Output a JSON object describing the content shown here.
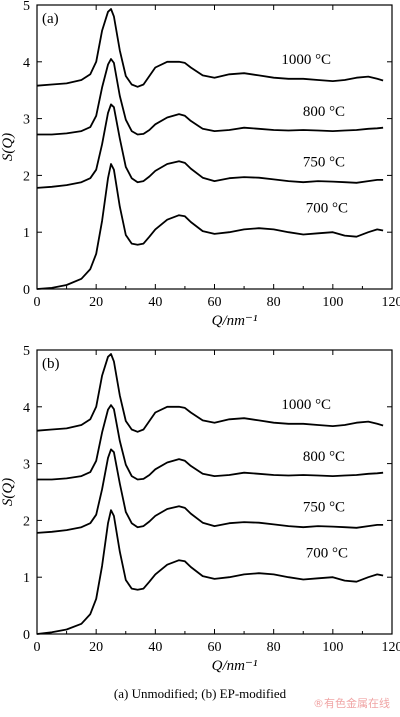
{
  "chart_data": [
    {
      "type": "line",
      "panel_label": "(a)",
      "xlabel": "Q/nm⁻¹",
      "ylabel": "S(Q)",
      "xlim": [
        0,
        120
      ],
      "ylim": [
        0,
        5
      ],
      "xticks": [
        0,
        20,
        40,
        60,
        80,
        100,
        120
      ],
      "yticks": [
        0,
        1,
        2,
        3,
        4,
        5
      ],
      "grid": false,
      "series": [
        {
          "name": "700 °C",
          "x": [
            0,
            5,
            10,
            15,
            18,
            20,
            22,
            24,
            25,
            26,
            28,
            30,
            32,
            34,
            36,
            38,
            40,
            44,
            48,
            50,
            52,
            56,
            60,
            65,
            70,
            75,
            80,
            85,
            90,
            95,
            100,
            104,
            108,
            112,
            115,
            117
          ],
          "y": [
            0,
            0.02,
            0.07,
            0.18,
            0.35,
            0.62,
            1.2,
            1.95,
            2.2,
            2.1,
            1.45,
            0.95,
            0.8,
            0.78,
            0.8,
            0.92,
            1.05,
            1.22,
            1.3,
            1.28,
            1.18,
            1.02,
            0.97,
            1.0,
            1.05,
            1.07,
            1.05,
            1.0,
            0.96,
            0.98,
            1.0,
            0.94,
            0.92,
            1.0,
            1.05,
            1.03
          ]
        },
        {
          "name": "750 °C",
          "x": [
            0,
            5,
            10,
            15,
            18,
            20,
            22,
            24,
            25,
            26,
            28,
            30,
            32,
            34,
            36,
            38,
            40,
            44,
            48,
            50,
            52,
            56,
            60,
            65,
            70,
            75,
            80,
            85,
            90,
            95,
            100,
            104,
            108,
            112,
            115,
            117
          ],
          "y": [
            1.78,
            1.8,
            1.83,
            1.88,
            1.95,
            2.1,
            2.55,
            3.1,
            3.25,
            3.2,
            2.65,
            2.15,
            1.95,
            1.88,
            1.9,
            1.98,
            2.08,
            2.2,
            2.25,
            2.22,
            2.12,
            1.96,
            1.9,
            1.95,
            1.97,
            1.96,
            1.93,
            1.9,
            1.88,
            1.9,
            1.89,
            1.88,
            1.87,
            1.9,
            1.92,
            1.92
          ]
        },
        {
          "name": "800 °C",
          "x": [
            0,
            5,
            10,
            15,
            18,
            20,
            22,
            24,
            25,
            26,
            28,
            30,
            32,
            34,
            36,
            38,
            40,
            44,
            48,
            50,
            52,
            56,
            60,
            65,
            70,
            75,
            80,
            85,
            90,
            95,
            100,
            104,
            108,
            112,
            115,
            117
          ],
          "y": [
            2.72,
            2.72,
            2.74,
            2.78,
            2.85,
            3.05,
            3.55,
            3.95,
            4.05,
            3.98,
            3.4,
            2.98,
            2.78,
            2.72,
            2.73,
            2.8,
            2.9,
            3.02,
            3.08,
            3.05,
            2.96,
            2.82,
            2.78,
            2.8,
            2.84,
            2.82,
            2.8,
            2.79,
            2.8,
            2.79,
            2.78,
            2.79,
            2.8,
            2.82,
            2.83,
            2.84
          ]
        },
        {
          "name": "1000 °C",
          "x": [
            0,
            5,
            10,
            15,
            18,
            20,
            22,
            24,
            25,
            26,
            28,
            30,
            32,
            34,
            36,
            38,
            40,
            44,
            48,
            50,
            52,
            56,
            60,
            65,
            70,
            75,
            80,
            85,
            90,
            95,
            100,
            104,
            108,
            112,
            115,
            117
          ],
          "y": [
            3.58,
            3.6,
            3.62,
            3.68,
            3.78,
            4.0,
            4.55,
            4.88,
            4.93,
            4.8,
            4.2,
            3.75,
            3.6,
            3.56,
            3.6,
            3.75,
            3.9,
            4.0,
            4.0,
            3.98,
            3.9,
            3.76,
            3.72,
            3.78,
            3.8,
            3.76,
            3.72,
            3.7,
            3.7,
            3.68,
            3.66,
            3.68,
            3.72,
            3.74,
            3.7,
            3.67
          ]
        }
      ]
    },
    {
      "type": "line",
      "panel_label": "(b)",
      "xlabel": "Q/nm⁻¹",
      "ylabel": "S(Q)",
      "xlim": [
        0,
        120
      ],
      "ylim": [
        0,
        5
      ],
      "xticks": [
        0,
        20,
        40,
        60,
        80,
        100,
        120
      ],
      "yticks": [
        0,
        1,
        2,
        3,
        4,
        5
      ],
      "grid": false,
      "series": [
        {
          "name": "700 °C",
          "x": [
            0,
            5,
            10,
            15,
            18,
            20,
            22,
            24,
            25,
            26,
            28,
            30,
            32,
            34,
            36,
            38,
            40,
            44,
            48,
            50,
            52,
            56,
            60,
            65,
            70,
            75,
            80,
            85,
            90,
            95,
            100,
            104,
            108,
            112,
            115,
            117
          ],
          "y": [
            0,
            0.03,
            0.08,
            0.18,
            0.35,
            0.62,
            1.2,
            1.95,
            2.18,
            2.08,
            1.45,
            0.95,
            0.8,
            0.78,
            0.8,
            0.92,
            1.05,
            1.22,
            1.3,
            1.28,
            1.18,
            1.02,
            0.97,
            1.0,
            1.05,
            1.07,
            1.05,
            1.0,
            0.96,
            0.98,
            1.0,
            0.94,
            0.92,
            1.0,
            1.05,
            1.03
          ]
        },
        {
          "name": "750 °C",
          "x": [
            0,
            5,
            10,
            15,
            18,
            20,
            22,
            24,
            25,
            26,
            28,
            30,
            32,
            34,
            36,
            38,
            40,
            44,
            48,
            50,
            52,
            56,
            60,
            65,
            70,
            75,
            80,
            85,
            90,
            95,
            100,
            104,
            108,
            112,
            115,
            117
          ],
          "y": [
            1.78,
            1.8,
            1.83,
            1.88,
            1.95,
            2.1,
            2.55,
            3.1,
            3.25,
            3.2,
            2.65,
            2.15,
            1.95,
            1.88,
            1.9,
            1.98,
            2.08,
            2.2,
            2.25,
            2.22,
            2.12,
            1.96,
            1.9,
            1.95,
            1.97,
            1.96,
            1.93,
            1.9,
            1.88,
            1.9,
            1.89,
            1.88,
            1.87,
            1.9,
            1.92,
            1.92
          ]
        },
        {
          "name": "800 °C",
          "x": [
            0,
            5,
            10,
            15,
            18,
            20,
            22,
            24,
            25,
            26,
            28,
            30,
            32,
            34,
            36,
            38,
            40,
            44,
            48,
            50,
            52,
            56,
            60,
            65,
            70,
            75,
            80,
            85,
            90,
            95,
            100,
            104,
            108,
            112,
            115,
            117
          ],
          "y": [
            2.72,
            2.72,
            2.74,
            2.78,
            2.85,
            3.05,
            3.55,
            3.95,
            4.03,
            3.96,
            3.4,
            2.98,
            2.78,
            2.72,
            2.73,
            2.8,
            2.9,
            3.02,
            3.08,
            3.05,
            2.96,
            2.82,
            2.78,
            2.8,
            2.84,
            2.82,
            2.8,
            2.79,
            2.8,
            2.79,
            2.78,
            2.79,
            2.8,
            2.82,
            2.83,
            2.84
          ]
        },
        {
          "name": "1000 °C",
          "x": [
            0,
            5,
            10,
            15,
            18,
            20,
            22,
            24,
            25,
            26,
            28,
            30,
            32,
            34,
            36,
            38,
            40,
            44,
            48,
            50,
            52,
            56,
            60,
            65,
            70,
            75,
            80,
            85,
            90,
            95,
            100,
            104,
            108,
            112,
            115,
            117
          ],
          "y": [
            3.58,
            3.6,
            3.62,
            3.68,
            3.78,
            4.0,
            4.55,
            4.88,
            4.93,
            4.8,
            4.2,
            3.75,
            3.6,
            3.56,
            3.6,
            3.75,
            3.9,
            4.0,
            4.0,
            3.98,
            3.9,
            3.76,
            3.72,
            3.78,
            3.8,
            3.76,
            3.72,
            3.7,
            3.7,
            3.68,
            3.66,
            3.68,
            3.72,
            3.74,
            3.7,
            3.67
          ]
        }
      ]
    }
  ],
  "caption": "(a) Unmodified; (b) EP-modified",
  "watermark": "®有色金属在线"
}
